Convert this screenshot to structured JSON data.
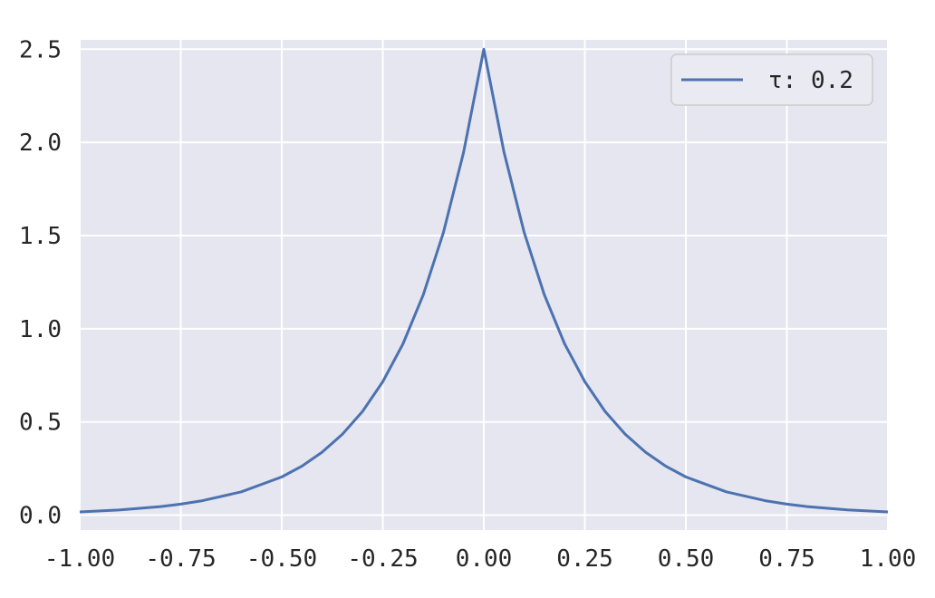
{
  "chart_data": {
    "type": "line",
    "title": "",
    "xlabel": "",
    "ylabel": "",
    "xlim": [
      -1.0,
      1.0
    ],
    "ylim": [
      -0.08,
      2.55
    ],
    "grid": true,
    "legend_placement": "top-right",
    "x_ticks": [
      -1.0,
      -0.75,
      -0.5,
      -0.25,
      0.0,
      0.25,
      0.5,
      0.75,
      1.0
    ],
    "x_tick_labels": [
      "-1.00",
      "-0.75",
      "-0.50",
      "-0.25",
      "0.00",
      "0.25",
      "0.50",
      "0.75",
      "1.00"
    ],
    "y_ticks": [
      0.0,
      0.5,
      1.0,
      1.5,
      2.0,
      2.5
    ],
    "y_tick_labels": [
      "0.0",
      "0.5",
      "1.0",
      "1.5",
      "2.0",
      "2.5"
    ],
    "series": [
      {
        "name": "τ: 0.2",
        "color": "#4c72b0",
        "x": [
          -1.0,
          -0.9,
          -0.8,
          -0.75,
          -0.7,
          -0.6,
          -0.5,
          -0.45,
          -0.4,
          -0.35,
          -0.3,
          -0.25,
          -0.2,
          -0.15,
          -0.1,
          -0.05,
          0.0,
          0.05,
          0.1,
          0.15,
          0.2,
          0.25,
          0.3,
          0.35,
          0.4,
          0.45,
          0.5,
          0.6,
          0.7,
          0.75,
          0.8,
          0.9,
          1.0
        ],
        "y": [
          0.017,
          0.028,
          0.046,
          0.059,
          0.076,
          0.125,
          0.205,
          0.263,
          0.338,
          0.434,
          0.557,
          0.716,
          0.919,
          1.181,
          1.516,
          1.947,
          2.5,
          1.947,
          1.516,
          1.181,
          0.919,
          0.716,
          0.557,
          0.434,
          0.338,
          0.263,
          0.205,
          0.125,
          0.076,
          0.059,
          0.046,
          0.028,
          0.017
        ]
      }
    ]
  },
  "colors": {
    "plot_background": "#e5e6f0",
    "grid": "#ffffff",
    "line": "#4c72b0",
    "text": "#262626"
  }
}
